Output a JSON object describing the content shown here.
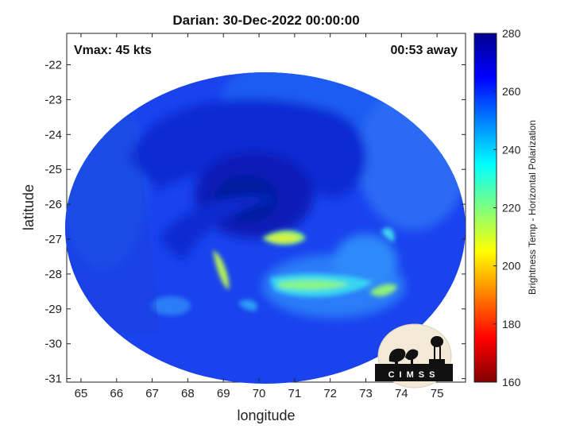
{
  "chart_data": {
    "type": "heatmap",
    "title": "Darian: 30-Dec-2022 00:00:00",
    "xlabel": "longitude",
    "ylabel": "latitude",
    "xlim": [
      64.6,
      75.8
    ],
    "ylim": [
      -31.1,
      -21.1
    ],
    "xticks": [
      65,
      66,
      67,
      68,
      69,
      70,
      71,
      72,
      73,
      74,
      75
    ],
    "yticks": [
      -22,
      -23,
      -24,
      -25,
      -26,
      -27,
      -28,
      -29,
      -30,
      -31
    ],
    "annotations": {
      "vmax": "Vmax: 45 kts",
      "time_offset": "00:53 away"
    },
    "colorbar": {
      "label": "Brightness Temp - Horizontal Polarization",
      "range": [
        160,
        280
      ],
      "ticks": [
        160,
        180,
        200,
        220,
        240,
        260,
        280
      ],
      "colormap": "jet"
    },
    "storm_center": {
      "lon": 69.9,
      "lat": -26.0
    },
    "features": [
      {
        "name": "eye region (cold core)",
        "lon": 69.8,
        "lat": -26.0,
        "tb": 268
      },
      {
        "name": "inner band arc",
        "lon": 70.9,
        "lat": -27.1,
        "tb": 212
      },
      {
        "name": "southern rain band",
        "lon": 71.8,
        "lat": -28.3,
        "tb": 225
      },
      {
        "name": "western band",
        "lon": 68.9,
        "lat": -27.9,
        "tb": 220
      }
    ]
  },
  "logo": {
    "text": "CIMSS"
  }
}
